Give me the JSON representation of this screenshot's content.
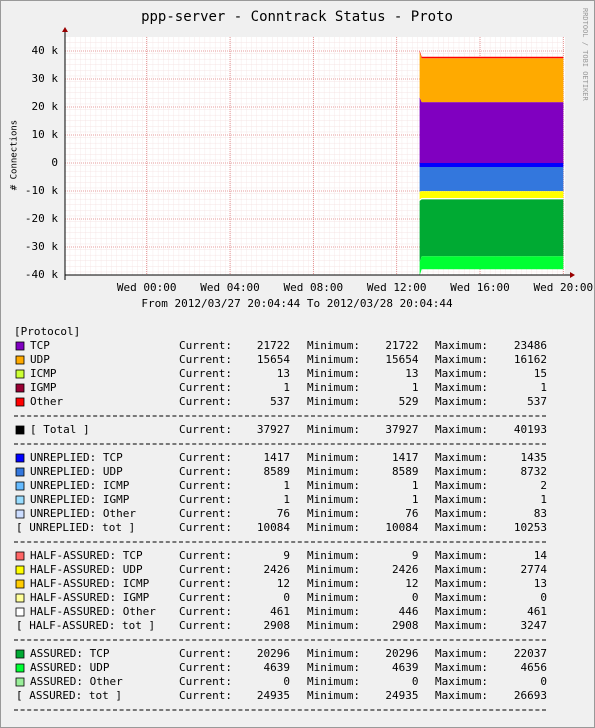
{
  "chart_data": {
    "type": "area",
    "title": "ppp-server - Conntrack Status - Proto",
    "y_label": "# Connections",
    "period": "From 2012/03/27 20:04:44 To 2012/03/28 20:04:44",
    "watermark": "RRDTOOL / TOBI OETIKER",
    "legend_header": "[Protocol]",
    "stat_labels": [
      "Current:",
      "Minimum:",
      "Maximum:"
    ],
    "grid": true,
    "x": [
      "2012/03/28 13:06",
      "2012/03/28 13:12",
      "2012/03/28 20:00"
    ],
    "xlim": [
      "2012/03/27 20:04:44",
      "2012/03/28 20:04:44"
    ],
    "xticks": [
      {
        "value": "2012/03/28 00:00",
        "label": "Wed 00:00"
      },
      {
        "value": "2012/03/28 04:00",
        "label": "Wed 04:00"
      },
      {
        "value": "2012/03/28 08:00",
        "label": "Wed 08:00"
      },
      {
        "value": "2012/03/28 12:00",
        "label": "Wed 12:00"
      },
      {
        "value": "2012/03/28 16:00",
        "label": "Wed 16:00"
      },
      {
        "value": "2012/03/28 20:00",
        "label": "Wed 20:00"
      }
    ],
    "ylim": [
      -40000,
      45000
    ],
    "yticks": [
      {
        "value": -40000,
        "label": "-40 k"
      },
      {
        "value": -30000,
        "label": "-30 k"
      },
      {
        "value": -20000,
        "label": "-20 k"
      },
      {
        "value": -10000,
        "label": "-10 k"
      },
      0,
      {
        "value": 10000,
        "label": "10 k"
      },
      {
        "value": 20000,
        "label": "20 k"
      },
      {
        "value": 30000,
        "label": "30 k"
      },
      {
        "value": 40000,
        "label": "40 k"
      }
    ],
    "series": [
      {
        "name": "TCP",
        "color": "#8000c0",
        "values": [
          23486,
          21722,
          21722
        ],
        "current": 21722,
        "minimum": 21722,
        "maximum": 23486
      },
      {
        "name": "UDP",
        "color": "#ffaa00",
        "values": [
          16162,
          15654,
          15654
        ],
        "current": 15654,
        "minimum": 15654,
        "maximum": 16162
      },
      {
        "name": "ICMP",
        "color": "#ccff33",
        "values": [
          15,
          13,
          13
        ],
        "current": 13,
        "minimum": 13,
        "maximum": 15
      },
      {
        "name": "IGMP",
        "color": "#990033",
        "values": [
          1,
          1,
          1
        ],
        "current": 1,
        "minimum": 1,
        "maximum": 1
      },
      {
        "name": "Other",
        "color": "#ff0000",
        "values": [
          537,
          537,
          537
        ],
        "current": 537,
        "minimum": 529,
        "maximum": 537
      },
      {
        "name": "UNREPLIED: TCP",
        "color": "#0000ff",
        "values": [
          -1435,
          -1417,
          -1417
        ],
        "current": 1417,
        "minimum": 1417,
        "maximum": 1435
      },
      {
        "name": "UNREPLIED: UDP",
        "color": "#3377dd",
        "values": [
          -8732,
          -8589,
          -8589
        ],
        "current": 8589,
        "minimum": 8589,
        "maximum": 8732
      },
      {
        "name": "UNREPLIED: ICMP",
        "color": "#66bbff",
        "values": [
          -2,
          -1,
          -1
        ],
        "current": 1,
        "minimum": 1,
        "maximum": 2
      },
      {
        "name": "UNREPLIED: IGMP",
        "color": "#99ddff",
        "values": [
          -1,
          -1,
          -1
        ],
        "current": 1,
        "minimum": 1,
        "maximum": 1
      },
      {
        "name": "UNREPLIED: Other",
        "color": "#ccddff",
        "values": [
          -83,
          -76,
          -76
        ],
        "current": 76,
        "minimum": 76,
        "maximum": 83
      },
      {
        "name": "HALF-ASSURED: TCP",
        "color": "#ff6666",
        "values": [
          -14,
          -9,
          -9
        ],
        "current": 9,
        "minimum": 9,
        "maximum": 14
      },
      {
        "name": "HALF-ASSURED: UDP",
        "color": "#ffff00",
        "values": [
          -2774,
          -2426,
          -2426
        ],
        "current": 2426,
        "minimum": 2426,
        "maximum": 2774
      },
      {
        "name": "HALF-ASSURED: ICMP",
        "color": "#ffcc00",
        "values": [
          -13,
          -12,
          -12
        ],
        "current": 12,
        "minimum": 12,
        "maximum": 13
      },
      {
        "name": "HALF-ASSURED: IGMP",
        "color": "#ffff99",
        "values": [
          0,
          0,
          0
        ],
        "current": 0,
        "minimum": 0,
        "maximum": 0
      },
      {
        "name": "HALF-ASSURED: Other",
        "color": "#ffffff",
        "values": [
          -461,
          -461,
          -461
        ],
        "current": 461,
        "minimum": 446,
        "maximum": 461
      },
      {
        "name": "ASSURED: TCP",
        "color": "#00aa33",
        "values": [
          -22037,
          -20296,
          -20296
        ],
        "current": 20296,
        "minimum": 20296,
        "maximum": 22037
      },
      {
        "name": "ASSURED: UDP",
        "color": "#00ff33",
        "values": [
          -4656,
          -4639,
          -4639
        ],
        "current": 4639,
        "minimum": 4639,
        "maximum": 4656
      },
      {
        "name": "ASSURED: Other",
        "color": "#99ee99",
        "values": [
          0,
          0,
          0
        ],
        "current": 0,
        "minimum": 0,
        "maximum": 0
      }
    ],
    "totals": [
      {
        "name": "[ Total ]",
        "color": "#000000",
        "current": 37927,
        "minimum": 37927,
        "maximum": 40193
      },
      {
        "name": "[ UNREPLIED: tot ]",
        "current": 10084,
        "minimum": 10084,
        "maximum": 10253
      },
      {
        "name": "[ HALF-ASSURED: tot ]",
        "current": 2908,
        "minimum": 2908,
        "maximum": 3247
      },
      {
        "name": "[ ASSURED: tot ]",
        "current": 24935,
        "minimum": 24935,
        "maximum": 26693
      }
    ]
  }
}
